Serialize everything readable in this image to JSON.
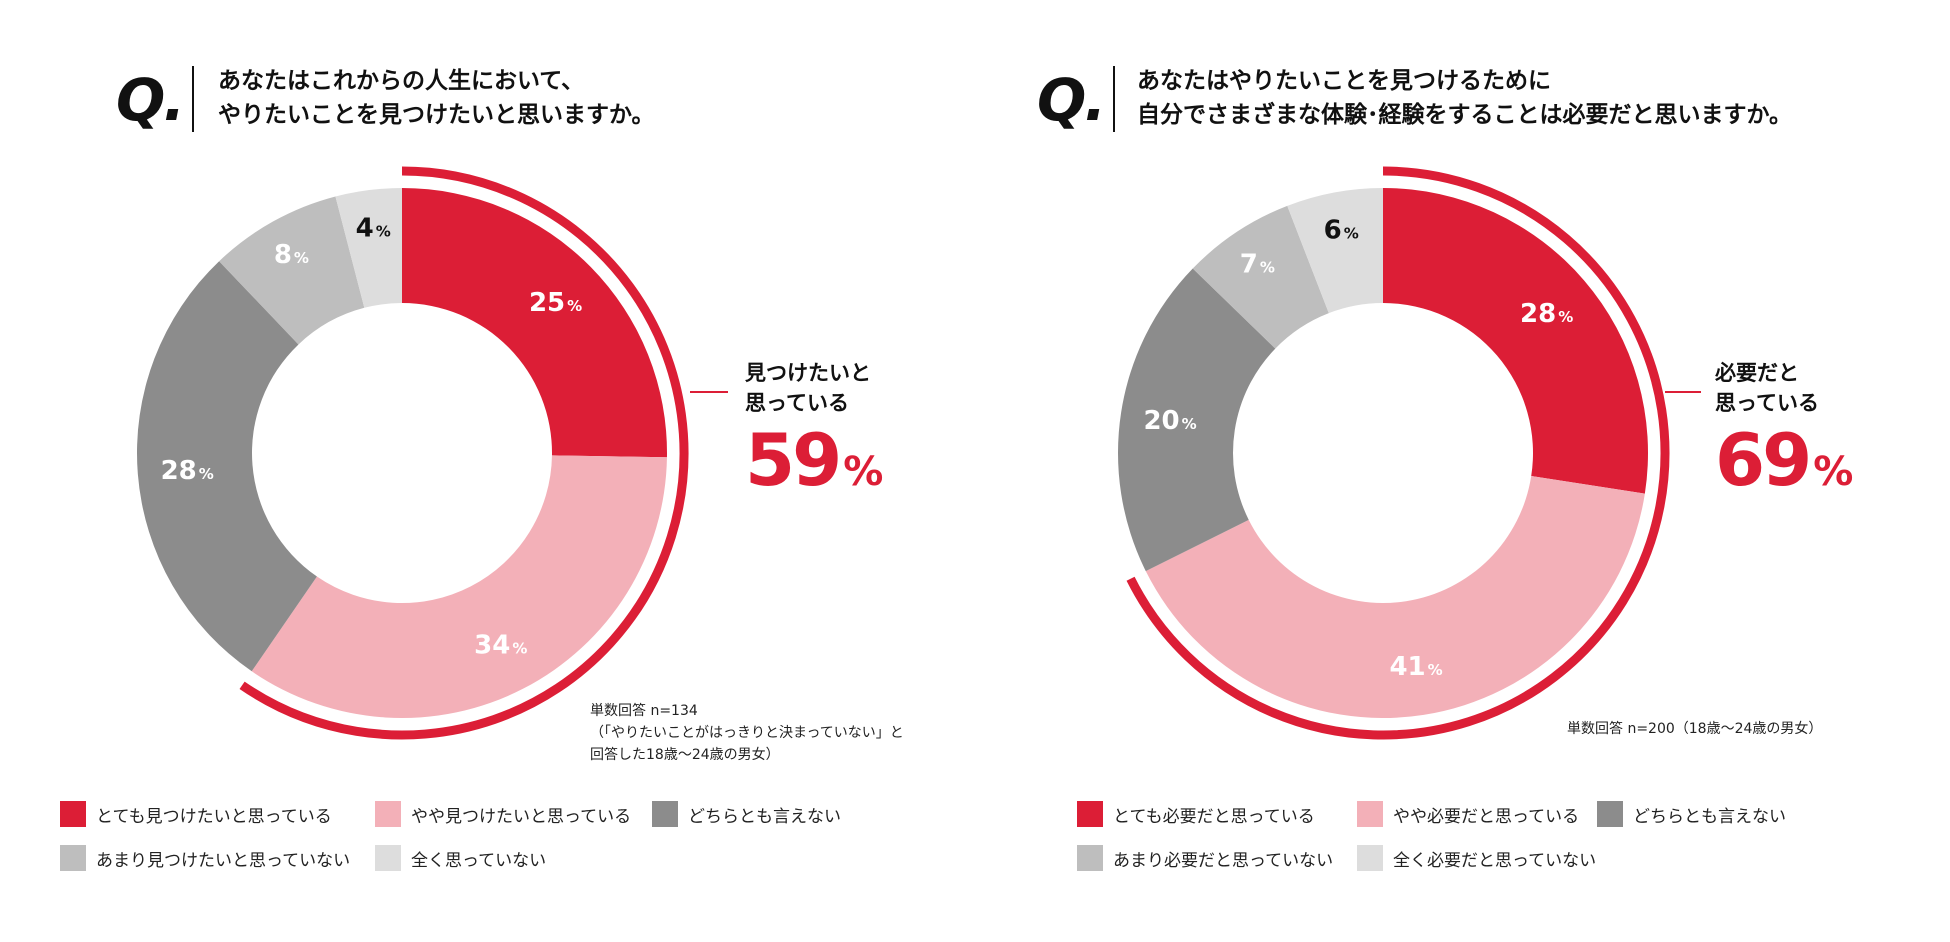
{
  "colors": {
    "very": "#dc1e36",
    "somewhat": "#f3b0b8",
    "neutral": "#8c8c8c",
    "not_much": "#bebebe",
    "not_at_all": "#dddddd",
    "accent": "#dc1e36"
  },
  "chart_data": [
    {
      "type": "pie",
      "variant": "donut",
      "q_mark": "Q.",
      "question_lines": [
        "あなたはこれからの人生において、",
        "やりたいことを見つけたいと思いますか。"
      ],
      "categories": [
        "とても見つけたいと思っている",
        "やや見つけたいと思っている",
        "どちらとも言えない",
        "あまり見つけたいと思っていない",
        "全く思っていない"
      ],
      "values": [
        25,
        34,
        28,
        8,
        4
      ],
      "unit": "%",
      "callout": {
        "label_lines": [
          "見つけたいと",
          "思っている"
        ],
        "value": "59",
        "unit": "%"
      },
      "note_lines": [
        "単数回答 n=134",
        "（「やりたいことがはっきりと決まっていない」と",
        "回答した18歳〜24歳の男女）"
      ]
    },
    {
      "type": "pie",
      "variant": "donut",
      "q_mark": "Q.",
      "question_lines": [
        "あなたはやりたいことを見つけるために",
        "自分でさまざまな体験･経験をすることは必要だと思いますか。"
      ],
      "categories": [
        "とても必要だと思っている",
        "やや必要だと思っている",
        "どちらとも言えない",
        "あまり必要だと思っていない",
        "全く必要だと思っていない"
      ],
      "values": [
        28,
        41,
        20,
        7,
        6
      ],
      "unit": "%",
      "callout": {
        "label_lines": [
          "必要だと",
          "思っている"
        ],
        "value": "69",
        "unit": "%"
      },
      "note_lines": [
        "単数回答 n=200（18歳〜24歳の男女）"
      ]
    }
  ]
}
